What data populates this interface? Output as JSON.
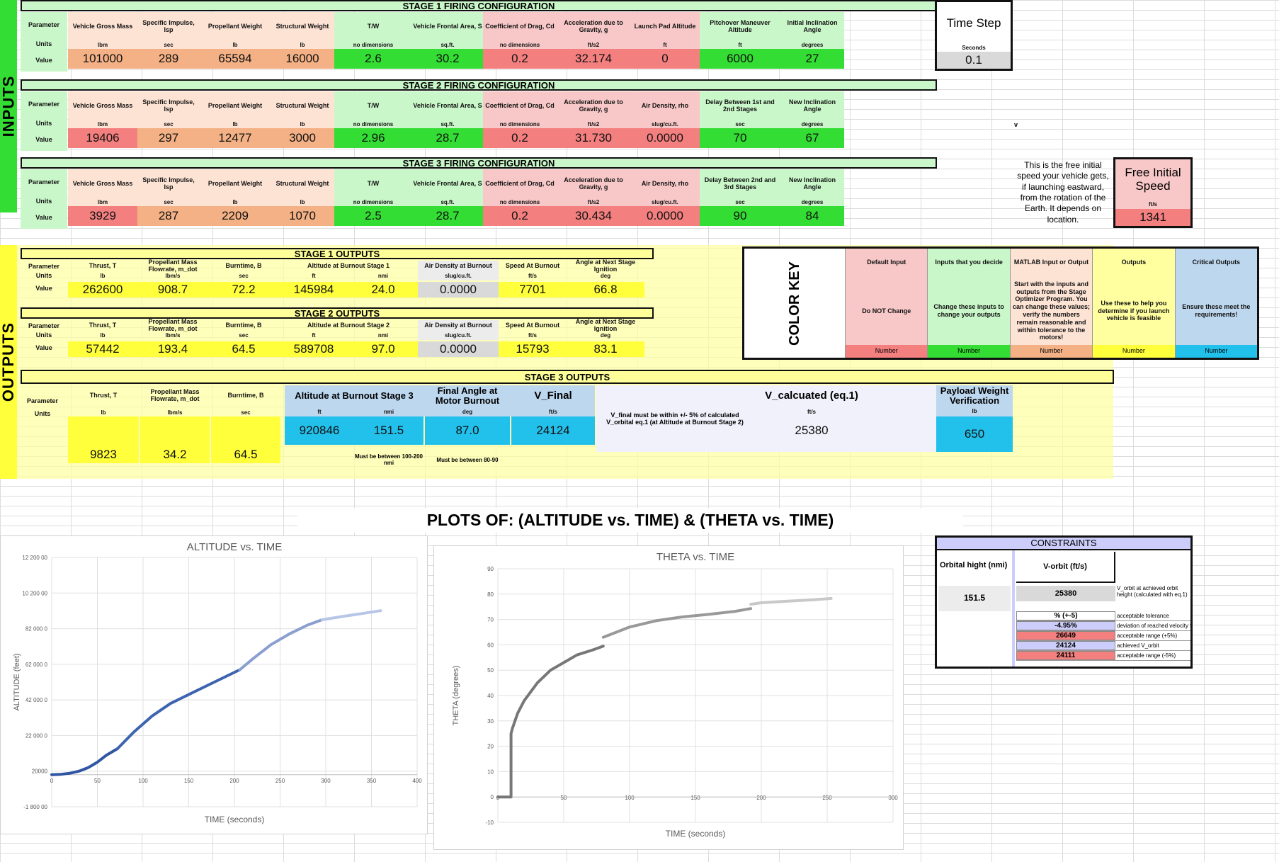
{
  "colors": {
    "peach": "#fde3d4",
    "green_light": "#c9f7c9",
    "green": "#33dd33",
    "pink": "#f8c8c8",
    "pink_dark": "#f47f7f",
    "orange": "#f3b185",
    "yellow": "#ffff3c",
    "yellow_light": "#ffffa0",
    "blue": "#22c1ec",
    "blue_light": "#bdd7ee",
    "gray": "#d9d9d9"
  },
  "side": {
    "inputs": "INPUTS",
    "outputs": "OUTPUTS"
  },
  "row_labels": {
    "parameter": "Parameter",
    "units": "Units",
    "value": "Value"
  },
  "stage1": {
    "title": "STAGE 1 FIRING CONFIGURATION",
    "cols": [
      {
        "p": "Vehicle Gross Mass",
        "u": "lbm",
        "v": "101000",
        "c": "peach",
        "vc": "orange"
      },
      {
        "p": "Specific Impulse, Isp",
        "u": "sec",
        "v": "289",
        "c": "peach",
        "vc": "orange"
      },
      {
        "p": "Propellant Weight",
        "u": "lb",
        "v": "65594",
        "c": "peach",
        "vc": "orange"
      },
      {
        "p": "Structural Weight",
        "u": "lb",
        "v": "16000",
        "c": "peach",
        "vc": "orange"
      },
      {
        "p": "T/W",
        "u": "no dimensions",
        "v": "2.6",
        "c": "green_light",
        "vc": "green"
      },
      {
        "p": "Vehicle Frontal Area, S",
        "u": "sq.ft.",
        "v": "30.2",
        "c": "green_light",
        "vc": "green"
      },
      {
        "p": "Coefficient of Drag, Cd",
        "u": "no dimensions",
        "v": "0.2",
        "c": "pink",
        "vc": "pink_dark"
      },
      {
        "p": "Acceleration due to Gravity, g",
        "u": "ft/s2",
        "v": "32.174",
        "c": "pink",
        "vc": "pink_dark"
      },
      {
        "p": "Launch Pad Altitude",
        "u": "ft",
        "v": "0",
        "c": "pink",
        "vc": "pink_dark"
      },
      {
        "p": "Pitchover Maneuver Altitude",
        "u": "ft",
        "v": "6000",
        "c": "green_light",
        "vc": "green"
      },
      {
        "p": "Initial Inclination Angle",
        "u": "degrees",
        "v": "27",
        "c": "green_light",
        "vc": "green"
      }
    ]
  },
  "timestep": {
    "title": "Time Step",
    "unit": "Seconds",
    "value": "0.1"
  },
  "stage2": {
    "title": "STAGE 2 FIRING CONFIGURATION",
    "cols": [
      {
        "p": "Vehicle Gross Mass",
        "u": "lbm",
        "v": "19406",
        "c": "peach",
        "vc": "pink_dark"
      },
      {
        "p": "Specific Impulse, Isp",
        "u": "sec",
        "v": "297",
        "c": "peach",
        "vc": "orange"
      },
      {
        "p": "Propellant Weight",
        "u": "lb",
        "v": "12477",
        "c": "peach",
        "vc": "orange"
      },
      {
        "p": "Structural Weight",
        "u": "lb",
        "v": "3000",
        "c": "peach",
        "vc": "orange"
      },
      {
        "p": "T/W",
        "u": "no dimensions",
        "v": "2.96",
        "c": "green_light",
        "vc": "green"
      },
      {
        "p": "Vehicle Frontal Area, S",
        "u": "sq.ft.",
        "v": "28.7",
        "c": "green_light",
        "vc": "green"
      },
      {
        "p": "Coefficient of Drag, Cd",
        "u": "no dimensions",
        "v": "0.2",
        "c": "pink",
        "vc": "pink_dark"
      },
      {
        "p": "Acceleration due to Gravity, g",
        "u": "ft/s2",
        "v": "31.730",
        "c": "pink",
        "vc": "pink_dark"
      },
      {
        "p": "Air Density, rho",
        "u": "slug/cu.ft.",
        "v": "0.0000",
        "c": "pink",
        "vc": "pink_dark"
      },
      {
        "p": "Delay Between 1st and 2nd Stages",
        "u": "sec",
        "v": "70",
        "c": "green_light",
        "vc": "green"
      },
      {
        "p": "New Inclination Angle",
        "u": "degrees",
        "v": "67",
        "c": "green_light",
        "vc": "green"
      }
    ]
  },
  "stray_v": "v",
  "stage3": {
    "title": "STAGE 3 FIRING CONFIGURATION",
    "cols": [
      {
        "p": "Vehicle Gross Mass",
        "u": "lbm",
        "v": "3929",
        "c": "peach",
        "vc": "pink_dark"
      },
      {
        "p": "Specific Impulse, Isp",
        "u": "sec",
        "v": "287",
        "c": "peach",
        "vc": "orange"
      },
      {
        "p": "Propellant Weight",
        "u": "lb",
        "v": "2209",
        "c": "peach",
        "vc": "orange"
      },
      {
        "p": "Structural Weight",
        "u": "lb",
        "v": "1070",
        "c": "peach",
        "vc": "orange"
      },
      {
        "p": "T/W",
        "u": "no dimensions",
        "v": "2.5",
        "c": "green_light",
        "vc": "green"
      },
      {
        "p": "Vehicle Frontal Area, S",
        "u": "sq.ft.",
        "v": "28.7",
        "c": "green_light",
        "vc": "green"
      },
      {
        "p": "Coefficient of Drag, Cd",
        "u": "no dimensions",
        "v": "0.2",
        "c": "pink",
        "vc": "pink_dark"
      },
      {
        "p": "Acceleration due to Gravity, g",
        "u": "ft/s2",
        "v": "30.434",
        "c": "pink",
        "vc": "pink_dark"
      },
      {
        "p": "Air Density, rho",
        "u": "slug/cu.ft.",
        "v": "0.0000",
        "c": "pink",
        "vc": "pink_dark"
      },
      {
        "p": "Delay Between 2nd and 3rd Stages",
        "u": "sec",
        "v": "90",
        "c": "green_light",
        "vc": "green"
      },
      {
        "p": "New Inclination Angle",
        "u": "degrees",
        "v": "84",
        "c": "green_light",
        "vc": "green"
      }
    ]
  },
  "free_speed": {
    "note": "This is the free initial speed your vehicle gets, if launching eastward, from the rotation of the Earth. It depends on location.",
    "title": "Free Initial Speed",
    "unit": "ft/s",
    "value": "1341"
  },
  "out1": {
    "title": "STAGE 1 OUTPUTS",
    "cols": [
      {
        "p": "Thrust, T",
        "u": "lb",
        "v": "262600",
        "vc": "yellow"
      },
      {
        "p": "Propellant Mass Flowrate, m_dot",
        "u": "lbm/s",
        "v": "908.7",
        "vc": "yellow"
      },
      {
        "p": "Burntime, B",
        "u": "sec",
        "v": "72.2",
        "vc": "yellow"
      },
      {
        "p": "",
        "u": "ft",
        "v": "145984",
        "vc": "yellow"
      },
      {
        "p": "",
        "u": "nmi",
        "v": "24.0",
        "vc": "yellow"
      },
      {
        "p": "Air Density at Burnout",
        "u": "slug/cu.ft.",
        "v": "0.0000",
        "vc": "gray"
      },
      {
        "p": "Speed At Burnout",
        "u": "ft/s",
        "v": "7701",
        "vc": "yellow"
      },
      {
        "p": "Angle at Next Stage Ignition",
        "u": "deg",
        "v": "66.8",
        "vc": "yellow"
      }
    ],
    "alt_header": "Altitude at Burnout Stage 1"
  },
  "out2": {
    "title": "STAGE 2 OUTPUTS",
    "cols": [
      {
        "p": "Thrust, T",
        "u": "lb",
        "v": "57442",
        "vc": "yellow"
      },
      {
        "p": "Propellant Mass Flowrate, m_dot",
        "u": "lbm/s",
        "v": "193.4",
        "vc": "yellow"
      },
      {
        "p": "Burntime, B",
        "u": "sec",
        "v": "64.5",
        "vc": "yellow"
      },
      {
        "p": "",
        "u": "ft",
        "v": "589708",
        "vc": "yellow"
      },
      {
        "p": "",
        "u": "nmi",
        "v": "97.0",
        "vc": "yellow"
      },
      {
        "p": "Air Density at Burnout",
        "u": "slug/cu.ft.",
        "v": "0.0000",
        "vc": "gray"
      },
      {
        "p": "Speed At Burnout",
        "u": "ft/s",
        "v": "15793",
        "vc": "yellow"
      },
      {
        "p": "Angle at Next Stage Ignition",
        "u": "deg",
        "v": "83.1",
        "vc": "yellow"
      }
    ],
    "alt_header": "Altitude at Burnout Stage 2"
  },
  "out3": {
    "title": "STAGE 3 OUTPUTS",
    "thrust": {
      "p": "Thrust, T",
      "u": "lb",
      "v": "9823"
    },
    "mdot": {
      "p": "Propellant Mass Flowrate, m_dot",
      "u": "lbm/s",
      "v": "34.2"
    },
    "burn": {
      "p": "Burntime, B",
      "u": "sec",
      "v": "64.5"
    },
    "alt": {
      "p": "Altitude at Burnout Stage 3",
      "u_ft": "ft",
      "u_nmi": "nmi",
      "v_ft": "920846",
      "v_nmi": "151.5",
      "note": "Must be between 100-200 nmi"
    },
    "angle": {
      "p": "Final Angle at Motor Burnout",
      "u": "deg",
      "v": "87.0",
      "note": "Must be between 80-90"
    },
    "vfinal": {
      "p": "V_Final",
      "u": "ft/s",
      "v": "24124"
    },
    "vnote": "V_final must be within +/- 5% of calculated V_orbital eq.1 (at Altitude at Burnout Stage 2)",
    "vcalc": {
      "p": "V_calcuated (eq.1)",
      "u": "ft/s",
      "v": "25380"
    },
    "payload": {
      "p": "Payload Weight Verification",
      "u": "lb",
      "v": "650"
    }
  },
  "colorkey": {
    "title": "COLOR KEY",
    "cols": [
      {
        "h": "Default Input",
        "d": "Do NOT Change",
        "f": "Number",
        "c": "pink",
        "fc": "pink_dark"
      },
      {
        "h": "Inputs that you decide",
        "d": "Change these inputs to change your outputs",
        "f": "Number",
        "c": "green_light",
        "fc": "green"
      },
      {
        "h": "MATLAB Input or Output",
        "d": "Start with the inputs and outputs from the Stage Optimizer Program.  You can change these values; verify the numbers remain reasonable and within tolerance to the motors!",
        "f": "Number",
        "c": "peach",
        "fc": "orange"
      },
      {
        "h": "Outputs",
        "d": "Use these to help you determine if you launch vehicle is feasible",
        "f": "Number",
        "c": "yellow_light",
        "fc": "yellow"
      },
      {
        "h": "Critical Outputs",
        "d": "Ensure these meet the requirements!",
        "f": "Number",
        "c": "blue_light",
        "fc": "blue"
      }
    ]
  },
  "plots_title": "PLOTS OF: (ALTITUDE vs. TIME)  &  (THETA vs. TIME)",
  "constraints": {
    "title": "CONSTRAINTS",
    "h1": "Orbital hight (nmi)",
    "h2": "V-orbit (ft/s)",
    "orbital": "151.5",
    "vorbit": "25380",
    "vorbit_note": "V_orbit at achieved orbit height (calculated with eq.1)",
    "rows": [
      {
        "v": "% (+-5)",
        "n": "acceptable tolerance",
        "c": "#ffffff"
      },
      {
        "v": "-4.95%",
        "n": "deviation of reached velocity from V_orbit",
        "c": "#cccdfa"
      },
      {
        "v": "26649",
        "n": "acceptable range (+5%)",
        "c": "#f47f7f"
      },
      {
        "v": "24124",
        "n": "achieved V_orbit",
        "c": "#cccdfa"
      },
      {
        "v": "24111",
        "n": "acceptable range (-5%)",
        "c": "#f47f7f"
      }
    ]
  },
  "chart_data": [
    {
      "type": "line",
      "title": "ALTITUDE vs. TIME",
      "xlabel": "TIME (seconds)",
      "ylabel": "ALTITUDE (feet)",
      "xlim": [
        0,
        400
      ],
      "ylim": [
        -180000,
        1220000
      ],
      "xticks": [
        "0",
        "50",
        "100",
        "150",
        "200",
        "250",
        "300",
        "350",
        "400"
      ],
      "yticks": [
        "-1 800 00",
        "20000",
        "22 000 0",
        "42 000 0",
        "62 000 0",
        "82 000 0",
        "10 200 00",
        "12 200 00"
      ],
      "series": [
        {
          "color": "#2f55a4",
          "x": [
            0,
            10,
            20,
            30,
            40,
            50,
            60,
            72
          ],
          "y": [
            0,
            2000,
            8000,
            20000,
            40000,
            70000,
            110000,
            145984
          ]
        },
        {
          "color": "#3d64b0",
          "x": [
            72,
            90,
            110,
            130,
            150,
            170,
            190,
            206
          ],
          "y": [
            145984,
            240000,
            330000,
            400000,
            450000,
            500000,
            550000,
            589708
          ]
        },
        {
          "color": "#8a9fd0",
          "x": [
            206,
            220,
            240,
            260,
            280,
            296
          ],
          "y": [
            589708,
            650000,
            730000,
            790000,
            840000,
            870000
          ]
        },
        {
          "color": "#b7c5e6",
          "x": [
            296,
            320,
            340,
            360
          ],
          "y": [
            870000,
            890000,
            905000,
            920846
          ]
        }
      ]
    },
    {
      "type": "line",
      "title": "THETA vs. TIME",
      "xlabel": "TIME (seconds)",
      "ylabel": "THETA (degrees)",
      "xlim": [
        0,
        300
      ],
      "ylim": [
        -10,
        90
      ],
      "xticks": [
        "0",
        "50",
        "100",
        "150",
        "200",
        "250",
        "300"
      ],
      "yticks": [
        "-10",
        "0",
        "10",
        "20",
        "30",
        "40",
        "50",
        "60",
        "70",
        "80",
        "90"
      ],
      "series": [
        {
          "color": "#777777",
          "x": [
            0,
            10,
            10,
            11,
            15,
            20,
            30,
            40,
            50,
            60,
            72,
            80
          ],
          "y": [
            0,
            0,
            25,
            27,
            33,
            38,
            45,
            50,
            53,
            56,
            58,
            59.5
          ]
        },
        {
          "color": "#999999",
          "x": [
            80,
            90,
            100,
            120,
            140,
            160,
            180,
            192
          ],
          "y": [
            63,
            65,
            67,
            69.5,
            71,
            72,
            73.2,
            74.3
          ]
        },
        {
          "color": "#c8c8c8",
          "x": [
            192,
            200,
            220,
            240,
            253
          ],
          "y": [
            76,
            76.6,
            77.2,
            77.8,
            78.3
          ]
        }
      ]
    }
  ]
}
